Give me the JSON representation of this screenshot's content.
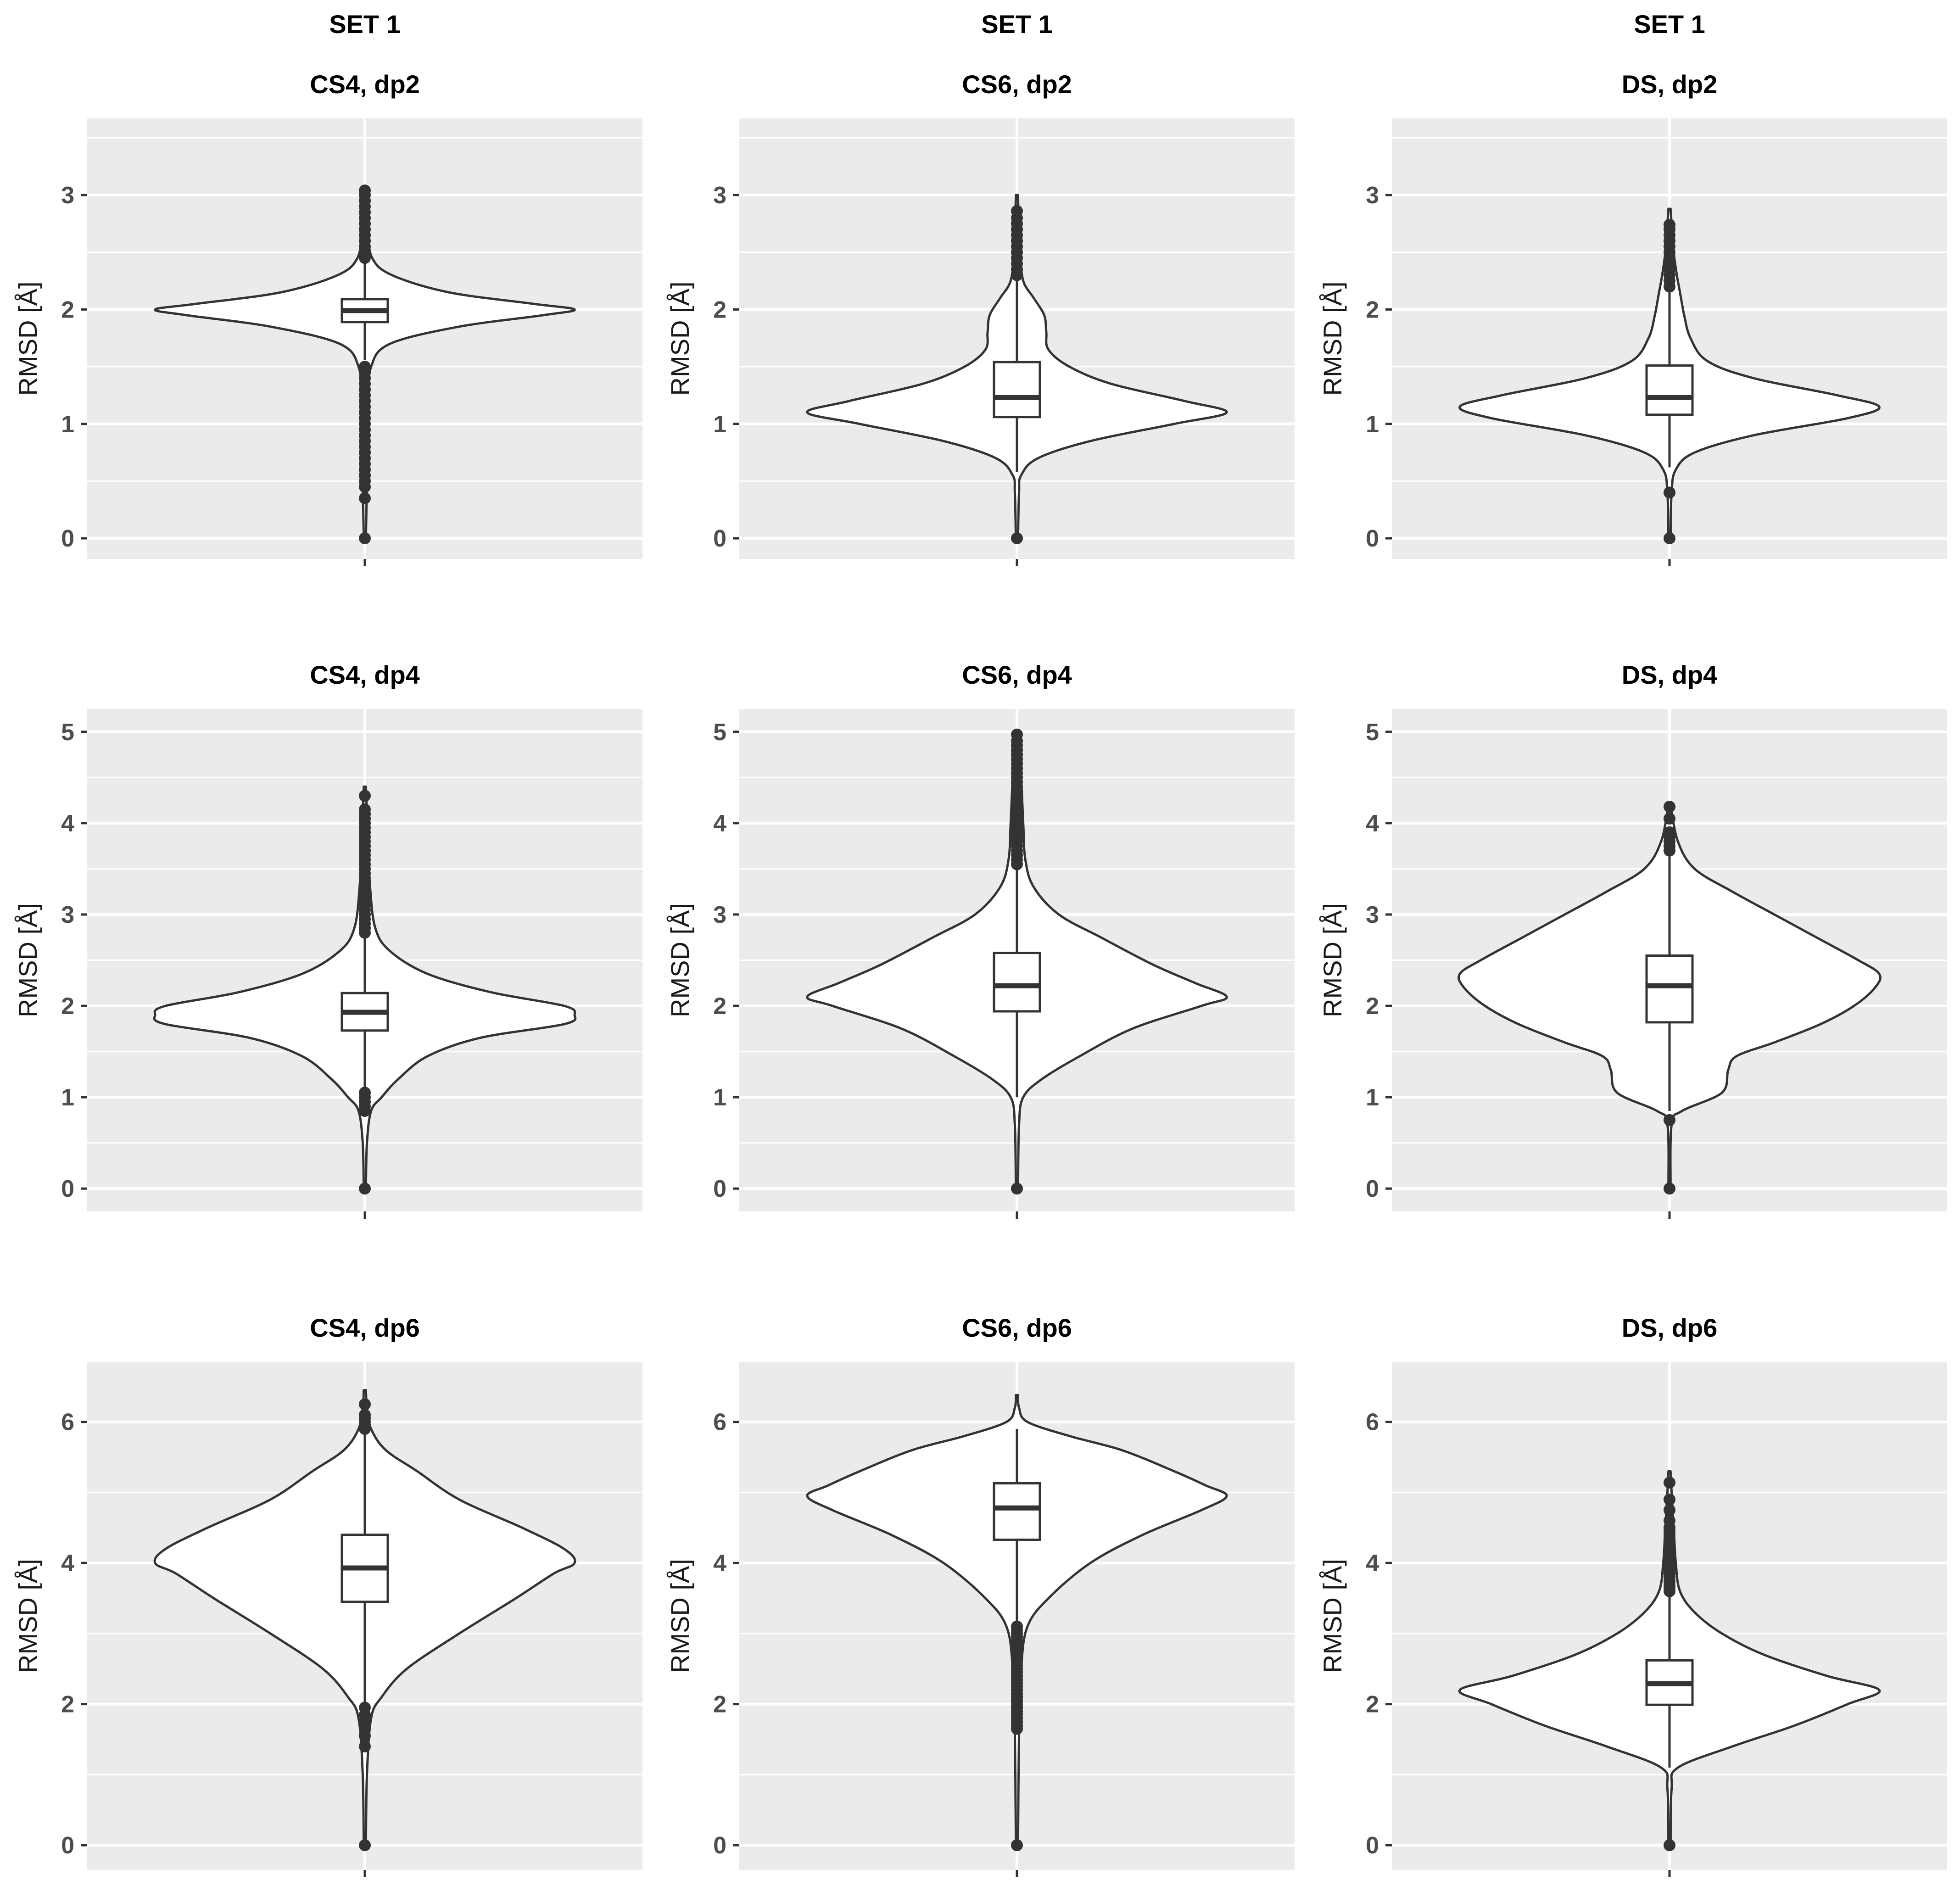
{
  "colors": {
    "panel_background": "#ebebeb",
    "grid_line": "#ffffff",
    "violin_fill": "#ffffff",
    "stroke": "#333333",
    "tick_label": "#4d4d4d",
    "title": "#000000"
  },
  "chart_data": [
    {
      "type": "violin",
      "set_title": "SET 1",
      "title": "CS4, dp2",
      "ylabel": "RMSD [Å]",
      "ylim": [
        -0.18,
        3.67
      ],
      "yticks": [
        0,
        1,
        2,
        3
      ],
      "ytick_labels": [
        "0",
        "1",
        "2",
        "3"
      ],
      "grid_minor": [
        0.5,
        1.5,
        2.5,
        3.5
      ],
      "density": [
        [
          0,
          0.005
        ],
        [
          0.3,
          0.008
        ],
        [
          0.6,
          0.01
        ],
        [
          0.9,
          0.012
        ],
        [
          1.2,
          0.018
        ],
        [
          1.5,
          0.03
        ],
        [
          1.7,
          0.12
        ],
        [
          1.85,
          0.45
        ],
        [
          1.95,
          0.85
        ],
        [
          2.0,
          1.0
        ],
        [
          2.05,
          0.8
        ],
        [
          2.15,
          0.4
        ],
        [
          2.3,
          0.13
        ],
        [
          2.45,
          0.035
        ],
        [
          2.7,
          0.015
        ],
        [
          3.0,
          0.008
        ],
        [
          3.06,
          0.005
        ]
      ],
      "box": {
        "q1": 1.89,
        "median": 1.99,
        "q3": 2.09,
        "whisker_low": 1.56,
        "whisker_high": 2.42
      },
      "outliers": [
        0,
        0.35,
        0.45,
        0.5,
        0.55,
        0.6,
        0.65,
        0.7,
        0.75,
        0.8,
        0.85,
        0.9,
        0.95,
        1.0,
        1.05,
        1.1,
        1.15,
        1.2,
        1.25,
        1.3,
        1.35,
        1.4,
        1.45,
        1.5,
        2.45,
        2.5,
        2.55,
        2.6,
        2.65,
        2.7,
        2.75,
        2.8,
        2.85,
        2.9,
        2.95,
        3.0,
        3.04
      ]
    },
    {
      "type": "violin",
      "set_title": "SET 1",
      "title": "CS6, dp2",
      "ylabel": "RMSD [Å]",
      "ylim": [
        -0.18,
        3.67
      ],
      "yticks": [
        0,
        1,
        2,
        3
      ],
      "ytick_labels": [
        "0",
        "1",
        "2",
        "3"
      ],
      "grid_minor": [
        0.5,
        1.5,
        2.5,
        3.5
      ],
      "density": [
        [
          0,
          0.005
        ],
        [
          0.4,
          0.01
        ],
        [
          0.55,
          0.02
        ],
        [
          0.7,
          0.1
        ],
        [
          0.85,
          0.35
        ],
        [
          1.0,
          0.75
        ],
        [
          1.1,
          1.0
        ],
        [
          1.2,
          0.8
        ],
        [
          1.35,
          0.45
        ],
        [
          1.5,
          0.25
        ],
        [
          1.65,
          0.15
        ],
        [
          1.8,
          0.14
        ],
        [
          1.95,
          0.13
        ],
        [
          2.1,
          0.08
        ],
        [
          2.25,
          0.03
        ],
        [
          2.5,
          0.015
        ],
        [
          2.8,
          0.008
        ],
        [
          3.0,
          0.005
        ]
      ],
      "box": {
        "q1": 1.06,
        "median": 1.23,
        "q3": 1.54,
        "whisker_low": 0.58,
        "whisker_high": 2.26
      },
      "outliers": [
        0,
        2.3,
        2.35,
        2.4,
        2.45,
        2.5,
        2.55,
        2.6,
        2.65,
        2.7,
        2.75,
        2.8,
        2.86
      ]
    },
    {
      "type": "violin",
      "set_title": "SET 1",
      "title": "DS, dp2",
      "ylabel": "RMSD [Å]",
      "ylim": [
        -0.18,
        3.67
      ],
      "yticks": [
        0,
        1,
        2,
        3
      ],
      "ytick_labels": [
        "0",
        "1",
        "2",
        "3"
      ],
      "grid_minor": [
        0.5,
        1.5,
        2.5,
        3.5
      ],
      "density": [
        [
          0,
          0.005
        ],
        [
          0.4,
          0.01
        ],
        [
          0.6,
          0.03
        ],
        [
          0.75,
          0.12
        ],
        [
          0.9,
          0.4
        ],
        [
          1.05,
          0.85
        ],
        [
          1.15,
          1.0
        ],
        [
          1.25,
          0.8
        ],
        [
          1.4,
          0.4
        ],
        [
          1.55,
          0.18
        ],
        [
          1.75,
          0.1
        ],
        [
          1.95,
          0.07
        ],
        [
          2.15,
          0.05
        ],
        [
          2.3,
          0.035
        ],
        [
          2.5,
          0.02
        ],
        [
          2.75,
          0.01
        ],
        [
          2.88,
          0.005
        ]
      ],
      "box": {
        "q1": 1.08,
        "median": 1.23,
        "q3": 1.51,
        "whisker_low": 0.62,
        "whisker_high": 2.16
      },
      "outliers": [
        0,
        0.4,
        2.2,
        2.25,
        2.3,
        2.35,
        2.4,
        2.45,
        2.5,
        2.55,
        2.6,
        2.65,
        2.7,
        2.74
      ]
    },
    {
      "type": "violin",
      "title": "CS4, dp4",
      "ylabel": "RMSD [Å]",
      "ylim": [
        -0.25,
        5.25
      ],
      "yticks": [
        0,
        1,
        2,
        3,
        4,
        5
      ],
      "ytick_labels": [
        "0",
        "1",
        "2",
        "3",
        "4",
        "5"
      ],
      "grid_minor": [
        0.5,
        1.5,
        2.5,
        3.5,
        4.5
      ],
      "density": [
        [
          0,
          0.005
        ],
        [
          0.5,
          0.01
        ],
        [
          0.85,
          0.03
        ],
        [
          1.0,
          0.08
        ],
        [
          1.2,
          0.16
        ],
        [
          1.45,
          0.3
        ],
        [
          1.65,
          0.55
        ],
        [
          1.8,
          0.95
        ],
        [
          1.9,
          1.0
        ],
        [
          2.0,
          0.95
        ],
        [
          2.15,
          0.6
        ],
        [
          2.35,
          0.3
        ],
        [
          2.6,
          0.12
        ],
        [
          2.85,
          0.05
        ],
        [
          3.3,
          0.025
        ],
        [
          3.8,
          0.015
        ],
        [
          4.4,
          0.005
        ]
      ],
      "box": {
        "q1": 1.73,
        "median": 1.93,
        "q3": 2.14,
        "whisker_low": 1.1,
        "whisker_high": 2.75
      },
      "outliers": [
        0,
        0.85,
        0.9,
        0.95,
        1.0,
        1.05,
        2.8,
        2.85,
        2.9,
        2.95,
        3.0,
        3.05,
        3.1,
        3.15,
        3.2,
        3.25,
        3.3,
        3.35,
        3.4,
        3.45,
        3.5,
        3.55,
        3.6,
        3.65,
        3.7,
        3.75,
        3.8,
        3.85,
        3.9,
        3.95,
        4.0,
        4.05,
        4.1,
        4.15,
        4.3
      ]
    },
    {
      "type": "violin",
      "title": "CS6, dp4",
      "ylabel": "RMSD [Å]",
      "ylim": [
        -0.25,
        5.25
      ],
      "yticks": [
        0,
        1,
        2,
        3,
        4,
        5
      ],
      "ytick_labels": [
        "0",
        "1",
        "2",
        "3",
        "4",
        "5"
      ],
      "grid_minor": [
        0.5,
        1.5,
        2.5,
        3.5,
        4.5
      ],
      "density": [
        [
          0,
          0.005
        ],
        [
          0.7,
          0.01
        ],
        [
          1.0,
          0.03
        ],
        [
          1.2,
          0.12
        ],
        [
          1.45,
          0.3
        ],
        [
          1.75,
          0.55
        ],
        [
          2.0,
          0.88
        ],
        [
          2.1,
          1.0
        ],
        [
          2.25,
          0.85
        ],
        [
          2.45,
          0.65
        ],
        [
          2.75,
          0.4
        ],
        [
          3.0,
          0.2
        ],
        [
          3.3,
          0.08
        ],
        [
          3.6,
          0.04
        ],
        [
          4.0,
          0.03
        ],
        [
          4.5,
          0.02
        ],
        [
          5.0,
          0.005
        ]
      ],
      "box": {
        "q1": 1.94,
        "median": 2.22,
        "q3": 2.58,
        "whisker_low": 1.0,
        "whisker_high": 3.5
      },
      "outliers": [
        0,
        3.55,
        3.6,
        3.65,
        3.7,
        3.75,
        3.8,
        3.85,
        3.9,
        3.95,
        4.0,
        4.05,
        4.1,
        4.15,
        4.2,
        4.25,
        4.3,
        4.35,
        4.4,
        4.45,
        4.5,
        4.55,
        4.6,
        4.65,
        4.7,
        4.75,
        4.8,
        4.85,
        4.9,
        4.97
      ]
    },
    {
      "type": "violin",
      "title": "DS, dp4",
      "ylabel": "RMSD [Å]",
      "ylim": [
        -0.25,
        5.25
      ],
      "yticks": [
        0,
        1,
        2,
        3,
        4,
        5
      ],
      "ytick_labels": [
        "0",
        "1",
        "2",
        "3",
        "4",
        "5"
      ],
      "grid_minor": [
        0.5,
        1.5,
        2.5,
        3.5,
        4.5
      ],
      "density": [
        [
          0,
          0.005
        ],
        [
          0.7,
          0.01
        ],
        [
          0.85,
          0.06
        ],
        [
          1.05,
          0.25
        ],
        [
          1.3,
          0.28
        ],
        [
          1.45,
          0.32
        ],
        [
          1.6,
          0.5
        ],
        [
          1.8,
          0.72
        ],
        [
          2.0,
          0.88
        ],
        [
          2.2,
          0.98
        ],
        [
          2.35,
          1.0
        ],
        [
          2.5,
          0.9
        ],
        [
          2.75,
          0.7
        ],
        [
          3.0,
          0.5
        ],
        [
          3.25,
          0.3
        ],
        [
          3.5,
          0.12
        ],
        [
          3.8,
          0.04
        ],
        [
          4.2,
          0.005
        ]
      ],
      "box": {
        "q1": 1.82,
        "median": 2.22,
        "q3": 2.55,
        "whisker_low": 0.85,
        "whisker_high": 3.65
      },
      "outliers": [
        0,
        0.75,
        3.7,
        3.75,
        3.8,
        3.85,
        3.9,
        4.05,
        4.18
      ]
    },
    {
      "type": "violin",
      "title": "CS4, dp6",
      "ylabel": "RMSD [Å]",
      "ylim": [
        -0.35,
        6.85
      ],
      "yticks": [
        0,
        2,
        4,
        6
      ],
      "ytick_labels": [
        "0",
        "2",
        "4",
        "6"
      ],
      "grid_minor": [
        1,
        3,
        5
      ],
      "density": [
        [
          0,
          0.005
        ],
        [
          1.0,
          0.01
        ],
        [
          1.8,
          0.03
        ],
        [
          2.1,
          0.08
        ],
        [
          2.5,
          0.2
        ],
        [
          3.0,
          0.45
        ],
        [
          3.5,
          0.72
        ],
        [
          3.85,
          0.9
        ],
        [
          4.0,
          1.0
        ],
        [
          4.2,
          0.95
        ],
        [
          4.5,
          0.75
        ],
        [
          4.9,
          0.45
        ],
        [
          5.3,
          0.25
        ],
        [
          5.6,
          0.1
        ],
        [
          5.9,
          0.03
        ],
        [
          6.2,
          0.01
        ],
        [
          6.45,
          0.005
        ]
      ],
      "box": {
        "q1": 3.45,
        "median": 3.93,
        "q3": 4.4,
        "whisker_low": 2.0,
        "whisker_high": 5.85
      },
      "outliers": [
        0,
        1.4,
        1.55,
        1.65,
        1.75,
        1.85,
        1.95,
        5.9,
        5.95,
        6.0,
        6.05,
        6.1,
        6.25
      ]
    },
    {
      "type": "violin",
      "title": "CS6, dp6",
      "ylabel": "RMSD [Å]",
      "ylim": [
        -0.35,
        6.85
      ],
      "yticks": [
        0,
        2,
        4,
        6
      ],
      "ytick_labels": [
        "0",
        "2",
        "4",
        "6"
      ],
      "grid_minor": [
        1,
        3,
        5
      ],
      "density": [
        [
          0,
          0.005
        ],
        [
          1.6,
          0.01
        ],
        [
          2.5,
          0.02
        ],
        [
          3.1,
          0.05
        ],
        [
          3.5,
          0.15
        ],
        [
          4.0,
          0.35
        ],
        [
          4.4,
          0.6
        ],
        [
          4.75,
          0.88
        ],
        [
          4.95,
          1.0
        ],
        [
          5.1,
          0.9
        ],
        [
          5.3,
          0.75
        ],
        [
          5.6,
          0.5
        ],
        [
          5.8,
          0.25
        ],
        [
          6.0,
          0.05
        ],
        [
          6.2,
          0.01
        ],
        [
          6.38,
          0.005
        ]
      ],
      "box": {
        "q1": 4.33,
        "median": 4.78,
        "q3": 5.13,
        "whisker_low": 3.15,
        "whisker_high": 5.9
      },
      "outliers": [
        0,
        1.65,
        1.7,
        1.75,
        1.8,
        1.85,
        1.9,
        1.95,
        2.0,
        2.05,
        2.1,
        2.15,
        2.2,
        2.25,
        2.3,
        2.35,
        2.4,
        2.45,
        2.5,
        2.55,
        2.6,
        2.65,
        2.7,
        2.75,
        2.8,
        2.85,
        2.9,
        2.95,
        3.0,
        3.05,
        3.1
      ]
    },
    {
      "type": "violin",
      "title": "DS, dp6",
      "ylabel": "RMSD [Å]",
      "ylim": [
        -0.35,
        6.85
      ],
      "yticks": [
        0,
        2,
        4,
        6
      ],
      "ytick_labels": [
        "0",
        "2",
        "4",
        "6"
      ],
      "grid_minor": [
        1,
        3,
        5
      ],
      "density": [
        [
          0,
          0.005
        ],
        [
          0.8,
          0.01
        ],
        [
          1.1,
          0.04
        ],
        [
          1.4,
          0.3
        ],
        [
          1.7,
          0.6
        ],
        [
          2.0,
          0.85
        ],
        [
          2.2,
          1.0
        ],
        [
          2.4,
          0.75
        ],
        [
          2.7,
          0.45
        ],
        [
          3.0,
          0.25
        ],
        [
          3.3,
          0.12
        ],
        [
          3.6,
          0.05
        ],
        [
          4.0,
          0.03
        ],
        [
          4.5,
          0.02
        ],
        [
          5.0,
          0.01
        ],
        [
          5.3,
          0.005
        ]
      ],
      "box": {
        "q1": 1.99,
        "median": 2.29,
        "q3": 2.62,
        "whisker_low": 1.1,
        "whisker_high": 3.55
      },
      "outliers": [
        0,
        3.6,
        3.65,
        3.7,
        3.75,
        3.8,
        3.85,
        3.9,
        3.95,
        4.0,
        4.05,
        4.1,
        4.15,
        4.2,
        4.25,
        4.3,
        4.35,
        4.4,
        4.45,
        4.5,
        4.6,
        4.75,
        4.9,
        5.14
      ]
    }
  ]
}
